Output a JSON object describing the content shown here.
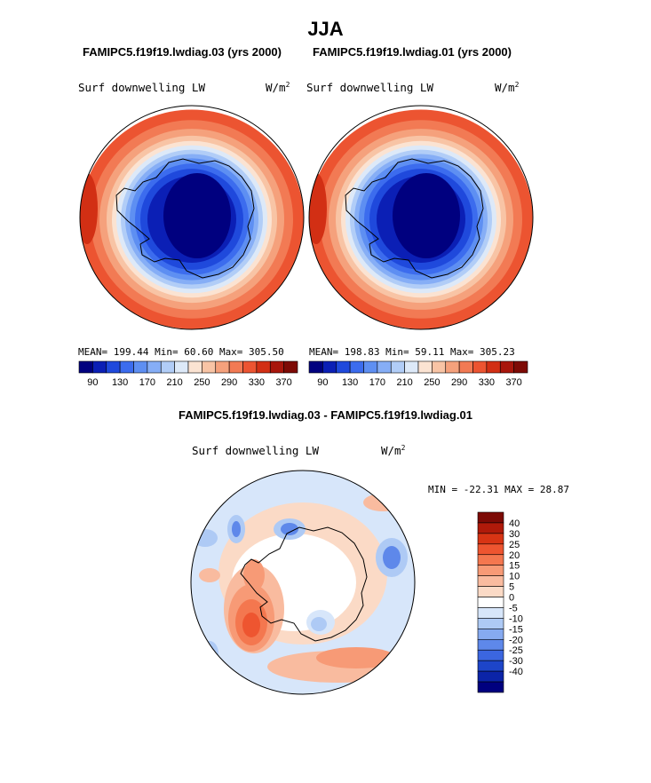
{
  "season": "JJA",
  "colors": {
    "abs_scale": [
      "#00007f",
      "#0b1fb5",
      "#1f49dc",
      "#3c6cee",
      "#5e8ff2",
      "#86aef6",
      "#b1cdf7",
      "#dde9f8",
      "#fbe3d2",
      "#f8c4a5",
      "#f5a17c",
      "#f27a54",
      "#ec5431",
      "#d22f14",
      "#a8160c",
      "#7d0a05"
    ],
    "diff_scale": [
      "#7d0a05",
      "#b01a0a",
      "#d83414",
      "#ee5530",
      "#f4774f",
      "#f79a76",
      "#f9bb9f",
      "#fbdac6",
      "#ffffff",
      "#d7e6fa",
      "#aecaf5",
      "#86aaf0",
      "#5e88ea",
      "#3b66e0",
      "#1d45c9",
      "#0b24a8",
      "#00007f"
    ]
  },
  "top_left": {
    "header": "FAMIPC5.f19f19.lwdiag.03 (yrs 2000)",
    "variable": "Surf downwelling LW",
    "units_base": "W/m",
    "units_exp": "2",
    "stats": "MEAN= 199.44   Min=   60.60   Max= 305.50"
  },
  "top_right": {
    "header": "FAMIPC5.f19f19.lwdiag.01 (yrs 2000)",
    "variable": "Surf downwelling LW",
    "units_base": "W/m",
    "units_exp": "2",
    "stats": "MEAN= 198.83   Min=   59.11   Max= 305.23"
  },
  "abs_colorbar_labels": [
    "90",
    "130",
    "170",
    "210",
    "250",
    "290",
    "330",
    "370"
  ],
  "diff": {
    "header": "FAMIPC5.f19f19.lwdiag.03 - FAMIPC5.f19f19.lwdiag.01",
    "variable": "Surf downwelling LW",
    "units_base": "W/m",
    "units_exp": "2",
    "minmax": "MIN = -22.31 MAX =  28.87",
    "colorbar_labels": [
      "40",
      "30",
      "25",
      "20",
      "15",
      "10",
      "5",
      "0",
      "-5",
      "-10",
      "-15",
      "-20",
      "-25",
      "-30",
      "-40"
    ]
  },
  "chart_data": [
    {
      "type": "heatmap",
      "projection": "south polar stereographic",
      "title": "FAMIPC5.f19f19.lwdiag.03 (yrs 2000)",
      "variable": "Surf downwelling LW",
      "units": "W/m^2",
      "mean": 199.44,
      "min": 60.6,
      "max": 305.5,
      "contour_levels": [
        70,
        90,
        110,
        130,
        150,
        170,
        190,
        210,
        230,
        250,
        270,
        290,
        310,
        330,
        350,
        370
      ]
    },
    {
      "type": "heatmap",
      "projection": "south polar stereographic",
      "title": "FAMIPC5.f19f19.lwdiag.01 (yrs 2000)",
      "variable": "Surf downwelling LW",
      "units": "W/m^2",
      "mean": 198.83,
      "min": 59.11,
      "max": 305.23,
      "contour_levels": [
        70,
        90,
        110,
        130,
        150,
        170,
        190,
        210,
        230,
        250,
        270,
        290,
        310,
        330,
        350,
        370
      ]
    },
    {
      "type": "heatmap",
      "projection": "south polar stereographic",
      "title": "FAMIPC5.f19f19.lwdiag.03 - FAMIPC5.f19f19.lwdiag.01",
      "variable": "Surf downwelling LW",
      "units": "W/m^2",
      "min": -22.31,
      "max": 28.87,
      "contour_levels": [
        -40,
        -30,
        -25,
        -20,
        -15,
        -10,
        -5,
        0,
        5,
        10,
        15,
        20,
        25,
        30,
        40
      ]
    }
  ]
}
